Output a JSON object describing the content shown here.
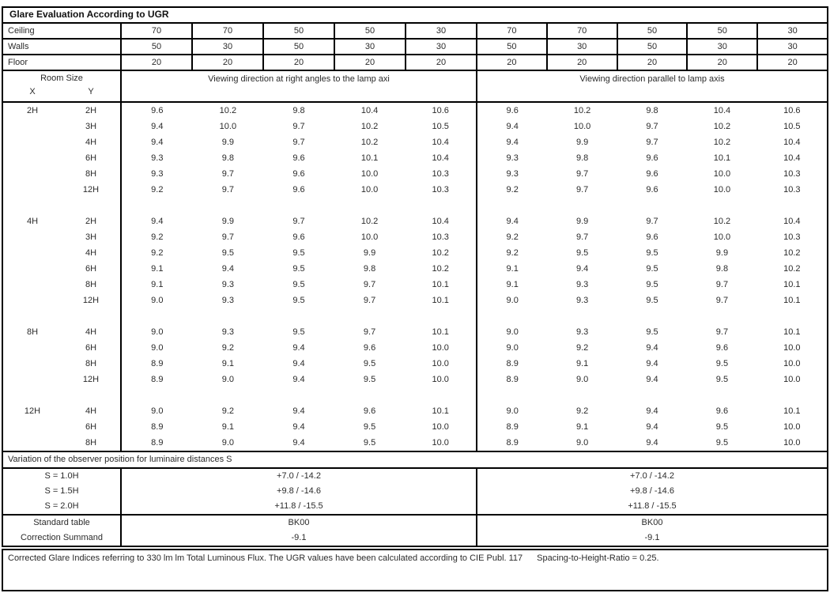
{
  "title": "Glare Evaluation According to UGR",
  "surface_rows": [
    {
      "label": "Ceiling",
      "values": [
        "70",
        "70",
        "50",
        "50",
        "30",
        "70",
        "70",
        "50",
        "50",
        "30"
      ]
    },
    {
      "label": "Walls",
      "values": [
        "50",
        "30",
        "50",
        "30",
        "30",
        "50",
        "30",
        "50",
        "30",
        "30"
      ]
    },
    {
      "label": "Floor",
      "values": [
        "20",
        "20",
        "20",
        "20",
        "20",
        "20",
        "20",
        "20",
        "20",
        "20"
      ]
    }
  ],
  "header": {
    "room_size": "Room Size",
    "x_label": "X",
    "y_label": "Y",
    "viewing_left": "Viewing direction at right angles to the lamp axi",
    "viewing_right": "Viewing direction parallel to lamp axis"
  },
  "ugr_groups": [
    {
      "x": "2H",
      "rows": [
        {
          "y": "2H",
          "left": [
            "9.6",
            "10.2",
            "9.8",
            "10.4",
            "10.6"
          ],
          "right": [
            "9.6",
            "10.2",
            "9.8",
            "10.4",
            "10.6"
          ]
        },
        {
          "y": "3H",
          "left": [
            "9.4",
            "10.0",
            "9.7",
            "10.2",
            "10.5"
          ],
          "right": [
            "9.4",
            "10.0",
            "9.7",
            "10.2",
            "10.5"
          ]
        },
        {
          "y": "4H",
          "left": [
            "9.4",
            "9.9",
            "9.7",
            "10.2",
            "10.4"
          ],
          "right": [
            "9.4",
            "9.9",
            "9.7",
            "10.2",
            "10.4"
          ]
        },
        {
          "y": "6H",
          "left": [
            "9.3",
            "9.8",
            "9.6",
            "10.1",
            "10.4"
          ],
          "right": [
            "9.3",
            "9.8",
            "9.6",
            "10.1",
            "10.4"
          ]
        },
        {
          "y": "8H",
          "left": [
            "9.3",
            "9.7",
            "9.6",
            "10.0",
            "10.3"
          ],
          "right": [
            "9.3",
            "9.7",
            "9.6",
            "10.0",
            "10.3"
          ]
        },
        {
          "y": "12H",
          "left": [
            "9.2",
            "9.7",
            "9.6",
            "10.0",
            "10.3"
          ],
          "right": [
            "9.2",
            "9.7",
            "9.6",
            "10.0",
            "10.3"
          ]
        }
      ]
    },
    {
      "x": "4H",
      "rows": [
        {
          "y": "2H",
          "left": [
            "9.4",
            "9.9",
            "9.7",
            "10.2",
            "10.4"
          ],
          "right": [
            "9.4",
            "9.9",
            "9.7",
            "10.2",
            "10.4"
          ]
        },
        {
          "y": "3H",
          "left": [
            "9.2",
            "9.7",
            "9.6",
            "10.0",
            "10.3"
          ],
          "right": [
            "9.2",
            "9.7",
            "9.6",
            "10.0",
            "10.3"
          ]
        },
        {
          "y": "4H",
          "left": [
            "9.2",
            "9.5",
            "9.5",
            "9.9",
            "10.2"
          ],
          "right": [
            "9.2",
            "9.5",
            "9.5",
            "9.9",
            "10.2"
          ]
        },
        {
          "y": "6H",
          "left": [
            "9.1",
            "9.4",
            "9.5",
            "9.8",
            "10.2"
          ],
          "right": [
            "9.1",
            "9.4",
            "9.5",
            "9.8",
            "10.2"
          ]
        },
        {
          "y": "8H",
          "left": [
            "9.1",
            "9.3",
            "9.5",
            "9.7",
            "10.1"
          ],
          "right": [
            "9.1",
            "9.3",
            "9.5",
            "9.7",
            "10.1"
          ]
        },
        {
          "y": "12H",
          "left": [
            "9.0",
            "9.3",
            "9.5",
            "9.7",
            "10.1"
          ],
          "right": [
            "9.0",
            "9.3",
            "9.5",
            "9.7",
            "10.1"
          ]
        }
      ]
    },
    {
      "x": "8H",
      "rows": [
        {
          "y": "4H",
          "left": [
            "9.0",
            "9.3",
            "9.5",
            "9.7",
            "10.1"
          ],
          "right": [
            "9.0",
            "9.3",
            "9.5",
            "9.7",
            "10.1"
          ]
        },
        {
          "y": "6H",
          "left": [
            "9.0",
            "9.2",
            "9.4",
            "9.6",
            "10.0"
          ],
          "right": [
            "9.0",
            "9.2",
            "9.4",
            "9.6",
            "10.0"
          ]
        },
        {
          "y": "8H",
          "left": [
            "8.9",
            "9.1",
            "9.4",
            "9.5",
            "10.0"
          ],
          "right": [
            "8.9",
            "9.1",
            "9.4",
            "9.5",
            "10.0"
          ]
        },
        {
          "y": "12H",
          "left": [
            "8.9",
            "9.0",
            "9.4",
            "9.5",
            "10.0"
          ],
          "right": [
            "8.9",
            "9.0",
            "9.4",
            "9.5",
            "10.0"
          ]
        }
      ]
    },
    {
      "x": "12H",
      "rows": [
        {
          "y": "4H",
          "left": [
            "9.0",
            "9.2",
            "9.4",
            "9.6",
            "10.1"
          ],
          "right": [
            "9.0",
            "9.2",
            "9.4",
            "9.6",
            "10.1"
          ]
        },
        {
          "y": "6H",
          "left": [
            "8.9",
            "9.1",
            "9.4",
            "9.5",
            "10.0"
          ],
          "right": [
            "8.9",
            "9.1",
            "9.4",
            "9.5",
            "10.0"
          ]
        },
        {
          "y": "8H",
          "left": [
            "8.9",
            "9.0",
            "9.4",
            "9.5",
            "10.0"
          ],
          "right": [
            "8.9",
            "9.0",
            "9.4",
            "9.5",
            "10.0"
          ]
        }
      ]
    }
  ],
  "variation_title": "Variation of the observer position for luminaire distances S",
  "s_rows": [
    {
      "label": "S = 1.0H",
      "left": "+7.0 / -14.2",
      "right": "+7.0 / -14.2"
    },
    {
      "label": "S = 1.5H",
      "left": "+9.8 / -14.6",
      "right": "+9.8 / -14.6"
    },
    {
      "label": "S = 2.0H",
      "left": "+11.8 / -15.5",
      "right": "+11.8 / -15.5"
    }
  ],
  "summary_rows": [
    {
      "label": "Standard table",
      "left": "BK00",
      "right": "BK00"
    },
    {
      "label": "Correction Summand",
      "left": "-9.1",
      "right": "-9.1"
    }
  ],
  "footer": {
    "main": "Corrected Glare Indices referring to 330 lm lm Total Luminous Flux. The UGR values have been calculated according to CIE Publ. 117",
    "ratio": "Spacing-to-Height-Ratio = 0.25."
  }
}
